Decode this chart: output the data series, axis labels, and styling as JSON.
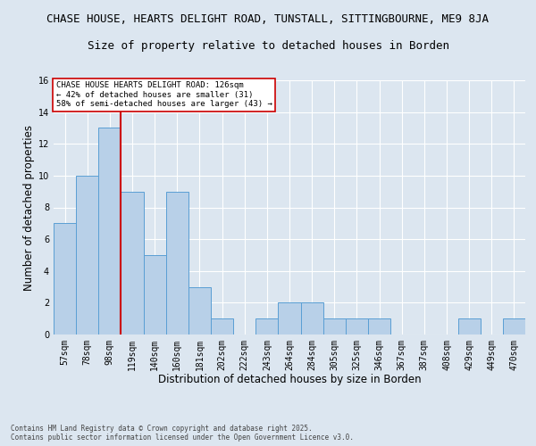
{
  "title_line1": "CHASE HOUSE, HEARTS DELIGHT ROAD, TUNSTALL, SITTINGBOURNE, ME9 8JA",
  "title_line2": "Size of property relative to detached houses in Borden",
  "xlabel": "Distribution of detached houses by size in Borden",
  "ylabel": "Number of detached properties",
  "footnote": "Contains HM Land Registry data © Crown copyright and database right 2025.\nContains public sector information licensed under the Open Government Licence v3.0.",
  "bin_labels": [
    "57sqm",
    "78sqm",
    "98sqm",
    "119sqm",
    "140sqm",
    "160sqm",
    "181sqm",
    "202sqm",
    "222sqm",
    "243sqm",
    "264sqm",
    "284sqm",
    "305sqm",
    "325sqm",
    "346sqm",
    "367sqm",
    "387sqm",
    "408sqm",
    "429sqm",
    "449sqm",
    "470sqm"
  ],
  "bar_values": [
    7,
    10,
    13,
    9,
    5,
    9,
    3,
    1,
    0,
    1,
    2,
    2,
    1,
    1,
    1,
    0,
    0,
    0,
    1,
    0,
    1
  ],
  "bar_color": "#b8d0e8",
  "bar_edge_color": "#5a9fd4",
  "ref_line_color": "#cc0000",
  "annotation_text": "CHASE HOUSE HEARTS DELIGHT ROAD: 126sqm\n← 42% of detached houses are smaller (31)\n58% of semi-detached houses are larger (43) →",
  "annotation_box_color": "#ffffff",
  "annotation_box_edge": "#cc0000",
  "ylim": [
    0,
    16
  ],
  "yticks": [
    0,
    2,
    4,
    6,
    8,
    10,
    12,
    14,
    16
  ],
  "background_color": "#dce6f0",
  "plot_background": "#dce6f0",
  "grid_color": "#ffffff",
  "title_fontsize": 9,
  "subtitle_fontsize": 9,
  "label_fontsize": 8.5,
  "tick_fontsize": 7,
  "annot_fontsize": 6.5,
  "footnote_fontsize": 5.5
}
